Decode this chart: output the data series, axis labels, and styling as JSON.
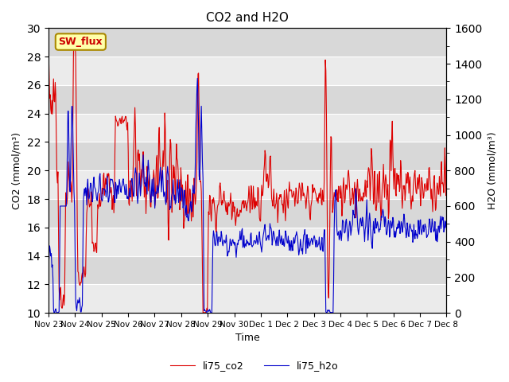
{
  "title": "CO2 and H2O",
  "xlabel": "Time",
  "ylabel_left": "CO2 (mmol/m³)",
  "ylabel_right": "H2O (mmol/m³)",
  "ylim_left": [
    10,
    30
  ],
  "ylim_right": [
    0,
    1600
  ],
  "yticks_left": [
    10,
    12,
    14,
    16,
    18,
    20,
    22,
    24,
    26,
    28,
    30
  ],
  "yticks_right": [
    0,
    200,
    400,
    600,
    800,
    1000,
    1200,
    1400,
    1600
  ],
  "xtick_labels": [
    "Nov 23",
    "Nov 24",
    "Nov 25",
    "Nov 26",
    "Nov 27",
    "Nov 28",
    "Nov 29",
    "Nov 30",
    "Dec 1",
    "Dec 2",
    "Dec 3",
    "Dec 4",
    "Dec 5",
    "Dec 6",
    "Dec 7",
    "Dec 8"
  ],
  "sw_flux_label": "SW_flux",
  "sw_flux_bg": "#ffffaa",
  "sw_flux_edge": "#aa8800",
  "sw_flux_text": "#cc0000",
  "legend_labels": [
    "li75_co2",
    "li75_h2o"
  ],
  "line_color_co2": "#dd0000",
  "line_color_h2o": "#0000cc",
  "bg_color": "#e0e0e0",
  "band_color_light": "#ebebeb",
  "band_color_dark": "#d8d8d8",
  "grid_color": "#ffffff",
  "fig_bg": "#ffffff",
  "linewidth": 0.8
}
